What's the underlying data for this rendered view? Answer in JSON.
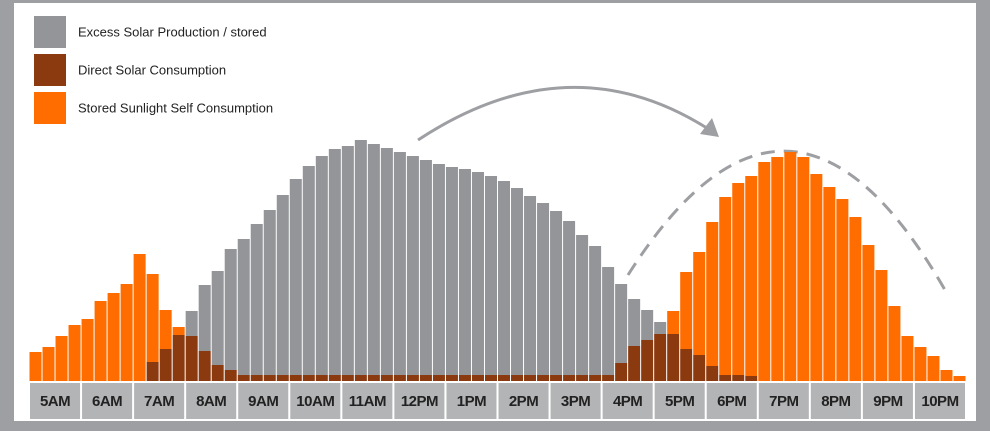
{
  "chart_data": {
    "type": "stacked_bar",
    "categories": [
      "5AM",
      "6AM",
      "7AM",
      "8AM",
      "9AM",
      "10AM",
      "11AM",
      "12PM",
      "1PM",
      "2PM",
      "3PM",
      "4PM",
      "5PM",
      "6PM",
      "7PM",
      "8PM",
      "9PM",
      "10PM"
    ],
    "ylim": [
      0,
      250
    ],
    "legend": "top-left",
    "series": [
      {
        "name": "Excess Solar Production / stored",
        "color": "#939598",
        "values": [
          [
            0,
            0,
            0,
            0
          ],
          [
            0,
            0,
            0,
            0
          ],
          [
            0,
            0,
            0,
            0
          ],
          [
            25,
            66,
            94,
            121
          ],
          [
            136,
            151,
            165,
            180
          ],
          [
            196,
            209,
            219,
            226
          ],
          [
            229,
            235,
            231,
            227
          ],
          [
            223,
            219,
            215,
            211
          ],
          [
            208,
            206,
            203,
            199
          ],
          [
            194,
            187,
            179,
            172
          ],
          [
            164,
            154,
            140,
            129
          ],
          [
            108,
            79,
            47,
            30
          ],
          [
            12,
            0,
            0,
            0
          ],
          [
            0,
            0,
            0,
            0
          ],
          [
            0,
            0,
            0,
            0
          ],
          [
            0,
            0,
            0,
            0
          ],
          [
            0,
            0,
            0,
            0
          ],
          [
            0,
            0,
            0,
            0
          ]
        ]
      },
      {
        "name": "Direct Solar Consumption",
        "color": "#8b3a0f",
        "values": [
          [
            0,
            0,
            0,
            0
          ],
          [
            0,
            0,
            0,
            0
          ],
          [
            0,
            19,
            32,
            46
          ],
          [
            45,
            30,
            16,
            11
          ],
          [
            6,
            6,
            6,
            6
          ],
          [
            6,
            6,
            6,
            6
          ],
          [
            6,
            6,
            6,
            6
          ],
          [
            6,
            6,
            6,
            6
          ],
          [
            6,
            6,
            6,
            6
          ],
          [
            6,
            6,
            6,
            6
          ],
          [
            6,
            6,
            6,
            6
          ],
          [
            6,
            18,
            35,
            41
          ],
          [
            47,
            47,
            32,
            26
          ],
          [
            15,
            6,
            6,
            5
          ],
          [
            0,
            0,
            0,
            0
          ],
          [
            0,
            0,
            0,
            0
          ],
          [
            0,
            0,
            0,
            0
          ],
          [
            0,
            0,
            0,
            0
          ]
        ]
      },
      {
        "name": "Stored Sunlight Self Consumption",
        "color": "#ff6d00",
        "values": [
          [
            29,
            34,
            45,
            56
          ],
          [
            62,
            80,
            88,
            97
          ],
          [
            127,
            88,
            39,
            8
          ],
          [
            0,
            0,
            0,
            0
          ],
          [
            0,
            0,
            0,
            0
          ],
          [
            0,
            0,
            0,
            0
          ],
          [
            0,
            0,
            0,
            0
          ],
          [
            0,
            0,
            0,
            0
          ],
          [
            0,
            0,
            0,
            0
          ],
          [
            0,
            0,
            0,
            0
          ],
          [
            0,
            0,
            0,
            0
          ],
          [
            0,
            0,
            0,
            0
          ],
          [
            0,
            23,
            77,
            103
          ],
          [
            144,
            178,
            192,
            200
          ],
          [
            219,
            224,
            229,
            224
          ],
          [
            207,
            194,
            182,
            164
          ],
          [
            136,
            111,
            75,
            45
          ],
          [
            34,
            25,
            11,
            5
          ]
        ]
      }
    ]
  }
}
